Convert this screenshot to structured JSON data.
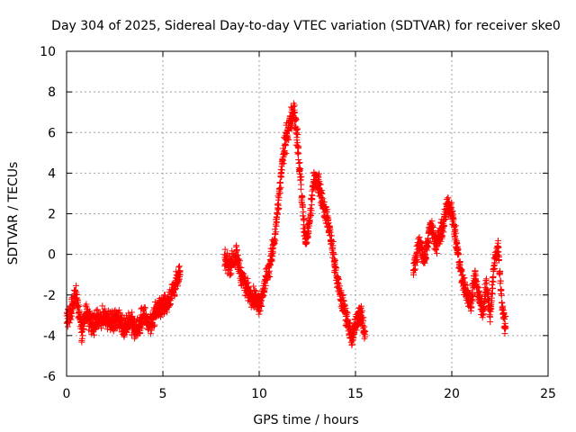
{
  "chart_data": {
    "type": "scatter",
    "title": "Day 304 of 2025, Sidereal Day-to-day VTEC variation (SDTVAR) for receiver ske0",
    "xlabel": "GPS time / hours",
    "ylabel": "SDTVAR / TECUs",
    "xlim": [
      0,
      25
    ],
    "ylim": [
      -6,
      10
    ],
    "xticks": [
      0,
      5,
      10,
      15,
      20,
      25
    ],
    "yticks": [
      -6,
      -4,
      -2,
      0,
      2,
      4,
      6,
      8,
      10
    ],
    "grid": true,
    "marker": "+",
    "color": "#ff0000",
    "series": [
      {
        "name": "SDTVAR",
        "segments": [
          {
            "x": [
              0.0,
              0.3,
              0.5,
              0.8,
              1.0,
              1.3,
              1.6,
              2.0,
              2.3,
              2.6,
              3.0,
              3.3,
              3.6,
              4.0,
              4.3,
              4.6,
              5.0,
              5.3,
              5.6,
              5.9
            ],
            "y": [
              -3.3,
              -2.6,
              -2.0,
              -3.8,
              -2.8,
              -3.5,
              -3.3,
              -3.0,
              -3.4,
              -3.1,
              -3.6,
              -3.2,
              -3.8,
              -3.0,
              -3.5,
              -2.9,
              -2.5,
              -2.3,
              -1.6,
              -1.0
            ]
          },
          {
            "x": [
              8.2,
              8.5,
              8.8,
              9.0,
              9.3,
              9.6,
              9.8,
              10.0,
              10.2,
              10.5,
              10.8,
              11.0,
              11.2,
              11.4,
              11.6,
              11.8,
              12.0,
              12.2,
              12.4,
              12.6,
              12.8,
              13.0,
              13.2,
              13.4,
              13.6,
              13.8,
              14.0,
              14.2,
              14.4,
              14.6,
              14.8,
              15.0,
              15.2,
              15.5
            ],
            "y": [
              -0.3,
              -0.5,
              0.0,
              -0.8,
              -1.6,
              -2.0,
              -2.2,
              -2.5,
              -1.8,
              -0.8,
              0.8,
              2.5,
              4.5,
              5.8,
              6.5,
              7.0,
              5.5,
              3.0,
              0.5,
              1.5,
              3.5,
              3.8,
              3.0,
              2.2,
              1.5,
              0.3,
              -1.0,
              -2.0,
              -2.6,
              -3.3,
              -4.2,
              -3.5,
              -2.8,
              -3.8
            ]
          },
          {
            "x": [
              18.0,
              18.3,
              18.6,
              18.9,
              19.2,
              19.5,
              19.8,
              20.0,
              20.2,
              20.4,
              20.6,
              20.8,
              21.0,
              21.2,
              21.4,
              21.6,
              21.8,
              22.0,
              22.2,
              22.4,
              22.6,
              22.8
            ],
            "y": [
              -0.8,
              0.6,
              -0.2,
              1.5,
              0.5,
              1.2,
              2.5,
              2.2,
              0.8,
              -0.5,
              -1.5,
              -2.0,
              -2.4,
              -1.0,
              -2.0,
              -2.8,
              -1.5,
              -3.0,
              -0.5,
              0.5,
              -2.5,
              -3.6
            ]
          }
        ]
      }
    ]
  }
}
